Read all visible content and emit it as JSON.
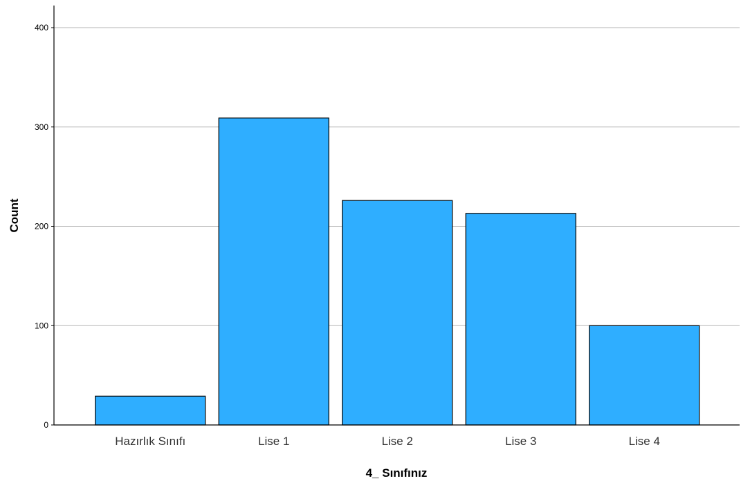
{
  "chart_data": {
    "type": "bar",
    "title": "",
    "xlabel": "4_ Sınıfınız",
    "ylabel": "Count",
    "categories": [
      "Hazırlık Sınıfı",
      "Lise 1",
      "Lise 2",
      "Lise 3",
      "Lise 4"
    ],
    "values": [
      29,
      309,
      226,
      213,
      100
    ],
    "ylim": [
      0,
      400
    ],
    "yticks": [
      "0",
      "100",
      "200",
      "300",
      "400"
    ],
    "grid": true,
    "legend": "none",
    "colors": {
      "bar_fill": "#2FAEFF",
      "bar_stroke": "#000000",
      "grid": "#B5B5B5",
      "axis": "#000000"
    }
  }
}
